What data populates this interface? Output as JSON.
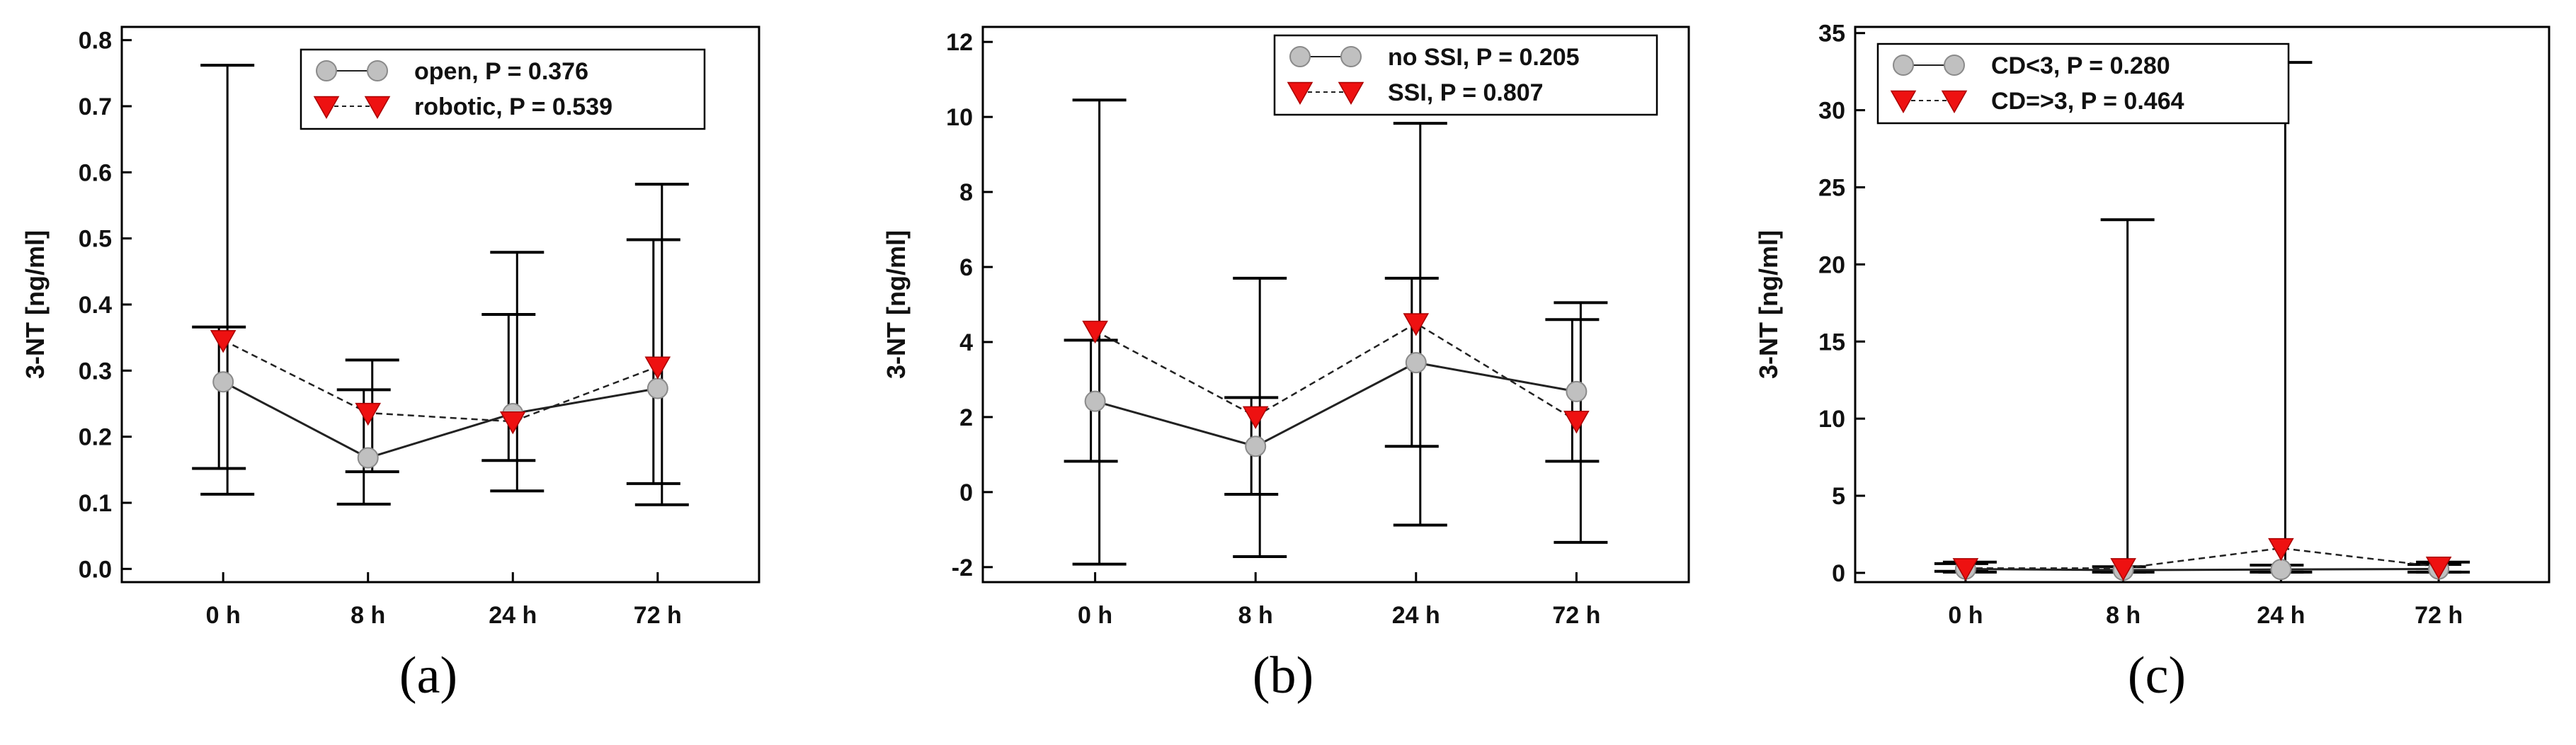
{
  "figure": {
    "colors": {
      "series1_marker": "#c0c0c0",
      "series2_marker": "#ee1111",
      "line": "#222222"
    }
  },
  "chart_data": [
    {
      "type": "line",
      "panel": "(a)",
      "ylabel": "3-NT [ng/ml]",
      "xlabel": "",
      "categories": [
        "0 h",
        "8 h",
        "24 h",
        "72 h"
      ],
      "ylim": [
        -0.02,
        0.82
      ],
      "yticks": [
        0.0,
        0.1,
        0.2,
        0.3,
        0.4,
        0.5,
        0.6,
        0.7,
        0.8
      ],
      "tick_decimals": 1,
      "series": [
        {
          "name": "open, P = 0.376",
          "marker": "circle",
          "line": "solid",
          "values": [
            0.283,
            0.168,
            0.235,
            0.273
          ],
          "ci_low": [
            0.152,
            0.098,
            0.164,
            0.129
          ],
          "ci_high": [
            0.366,
            0.271,
            0.385,
            0.498
          ]
        },
        {
          "name": "robotic, P = 0.539",
          "marker": "triangle-down",
          "line": "dashed",
          "values": [
            0.346,
            0.236,
            0.223,
            0.306
          ],
          "ci_low": [
            0.113,
            0.147,
            0.118,
            0.097
          ],
          "ci_high": [
            0.762,
            0.316,
            0.479,
            0.582
          ]
        }
      ]
    },
    {
      "type": "line",
      "panel": "(b)",
      "ylabel": "3-NT [ng/ml]",
      "xlabel": "",
      "categories": [
        "0 h",
        "8 h",
        "24 h",
        "72 h"
      ],
      "ylim": [
        -2.4,
        12.4
      ],
      "yticks": [
        -2,
        0,
        2,
        4,
        6,
        8,
        10,
        12
      ],
      "tick_decimals": 0,
      "series": [
        {
          "name": "no SSI, P = 0.205",
          "marker": "circle",
          "line": "solid",
          "values": [
            2.42,
            1.22,
            3.45,
            2.68
          ],
          "ci_low": [
            0.82,
            -0.06,
            1.22,
            0.82
          ],
          "ci_high": [
            4.05,
            2.52,
            5.7,
            4.6
          ]
        },
        {
          "name": "SSI, P = 0.807",
          "marker": "triangle-down",
          "line": "dashed",
          "values": [
            4.3,
            2.02,
            4.5,
            1.9
          ],
          "ci_low": [
            -1.92,
            -1.72,
            -0.88,
            -1.34
          ],
          "ci_high": [
            10.45,
            5.7,
            9.83,
            5.05
          ]
        }
      ]
    },
    {
      "type": "line",
      "panel": "(c)",
      "ylabel": "3-NT [ng/ml]",
      "xlabel": "",
      "categories": [
        "0 h",
        "8 h",
        "24 h",
        "72 h"
      ],
      "ylim": [
        -0.6,
        35.4
      ],
      "yticks": [
        0,
        5,
        10,
        15,
        20,
        25,
        30,
        35
      ],
      "tick_decimals": 0,
      "series": [
        {
          "name": "CD<3, P = 0.280",
          "marker": "circle",
          "line": "solid",
          "values": [
            0.25,
            0.18,
            0.22,
            0.25
          ],
          "ci_low": [
            0.1,
            0.05,
            0.05,
            0.05
          ],
          "ci_high": [
            0.6,
            0.4,
            0.5,
            0.55
          ]
        },
        {
          "name": "CD=>3, P = 0.464",
          "marker": "triangle-down",
          "line": "dashed",
          "values": [
            0.3,
            0.3,
            1.6,
            0.4
          ],
          "ci_low": [
            0.05,
            0.05,
            0.05,
            0.05
          ],
          "ci_high": [
            0.7,
            22.9,
            33.1,
            0.7
          ]
        }
      ]
    }
  ]
}
